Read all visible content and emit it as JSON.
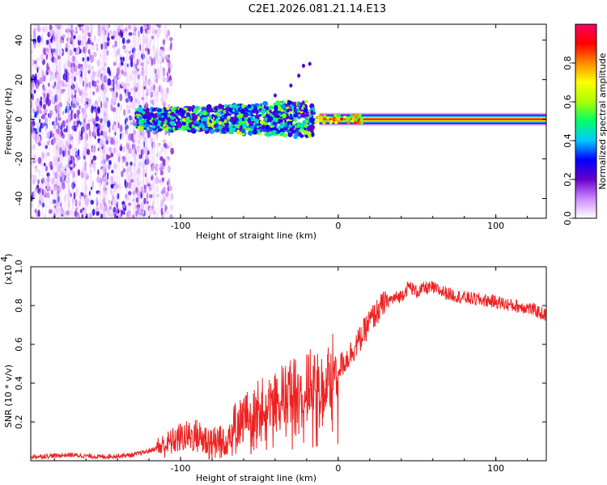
{
  "title": "C2E1.2026.081.21.14.E13",
  "chart_data": [
    {
      "type": "heatmap",
      "xlabel": "Height of straight line (km)",
      "ylabel": "Frequency (Hz)",
      "xlim": [
        -195,
        132
      ],
      "ylim": [
        -50,
        48
      ],
      "xticks": [
        -100,
        0,
        100
      ],
      "yticks": [
        -40,
        -20,
        0,
        20,
        40
      ],
      "colorbar": {
        "label": "Normalized spectral amplitude",
        "range": [
          0,
          1
        ],
        "ticks": [
          "0.0",
          "0.2",
          "0.4",
          "0.6",
          "0.8"
        ],
        "colors": [
          "#ffffff",
          "#cc88ff",
          "#6600cc",
          "#0000ff",
          "#00ccff",
          "#00ff66",
          "#aaff00",
          "#ffff00",
          "#ff8800",
          "#ff0000",
          "#ff0066"
        ]
      },
      "features": [
        {
          "name": "broadband noise",
          "x_range": [
            -195,
            -115
          ],
          "freq_range": [
            -50,
            48
          ],
          "amplitude": 0.15
        },
        {
          "name": "scattered signal",
          "x_range": [
            -128,
            -15
          ],
          "freq_center": 0,
          "freq_spread": 8,
          "amplitude": 0.45
        },
        {
          "name": "narrow carrier",
          "x_range": [
            -15,
            132
          ],
          "freq_center": 0,
          "amplitude": 0.95
        }
      ]
    },
    {
      "type": "line",
      "xlabel": "Height of straight line (km)",
      "ylabel": "SNR (10 * v/v)",
      "y_multiplier": "(x10",
      "y_multiplier_exp": "4",
      "y_multiplier_close": ")",
      "xlim": [
        -195,
        132
      ],
      "ylim": [
        0,
        1.0
      ],
      "xticks": [
        -100,
        0,
        100
      ],
      "yticks": [
        "0.2",
        "0.4",
        "0.6",
        "0.8",
        "1.0"
      ],
      "series": [
        {
          "name": "SNR",
          "color": "#ee2222",
          "x": [
            -195,
            -170,
            -150,
            -130,
            -120,
            -110,
            -100,
            -90,
            -80,
            -70,
            -60,
            -50,
            -40,
            -30,
            -20,
            -15,
            -10,
            -5,
            0,
            5,
            10,
            15,
            20,
            25,
            30,
            40,
            45,
            50,
            55,
            60,
            70,
            80,
            90,
            100,
            110,
            120,
            132
          ],
          "y": [
            0.02,
            0.03,
            0.02,
            0.03,
            0.05,
            0.08,
            0.12,
            0.13,
            0.09,
            0.14,
            0.22,
            0.28,
            0.32,
            0.36,
            0.38,
            0.42,
            0.36,
            0.45,
            0.48,
            0.52,
            0.58,
            0.64,
            0.72,
            0.77,
            0.82,
            0.85,
            0.9,
            0.87,
            0.89,
            0.89,
            0.86,
            0.84,
            0.83,
            0.82,
            0.8,
            0.79,
            0.75
          ]
        }
      ]
    }
  ]
}
